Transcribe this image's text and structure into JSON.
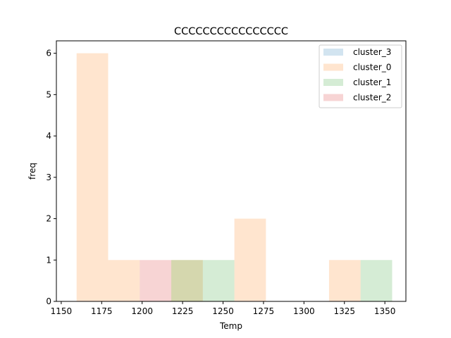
{
  "chart_data": {
    "type": "bar",
    "title": "CCCCCCCCCCCCCCCC",
    "xlabel": "Temp",
    "ylabel": "freq",
    "xlim": [
      1147,
      1363
    ],
    "ylim": [
      0,
      6.3
    ],
    "xticks": [
      1150,
      1175,
      1200,
      1225,
      1250,
      1275,
      1300,
      1325,
      1350
    ],
    "yticks": [
      0,
      1,
      2,
      3,
      4,
      5,
      6
    ],
    "legend_position": "top-right",
    "alpha": 0.2,
    "series": [
      {
        "name": "cluster_3",
        "color": "#1f77b4",
        "bins": []
      },
      {
        "name": "cluster_0",
        "color": "#ff7f0e",
        "bins": [
          {
            "x0": 1159.5,
            "x1": 1179.0,
            "count": 6
          },
          {
            "x0": 1179.0,
            "x1": 1198.5,
            "count": 1
          },
          {
            "x0": 1218.0,
            "x1": 1237.5,
            "count": 1
          },
          {
            "x0": 1257.0,
            "x1": 1276.5,
            "count": 2
          },
          {
            "x0": 1315.5,
            "x1": 1335.0,
            "count": 1
          }
        ]
      },
      {
        "name": "cluster_1",
        "color": "#2ca02c",
        "bins": [
          {
            "x0": 1218.0,
            "x1": 1237.5,
            "count": 1
          },
          {
            "x0": 1237.5,
            "x1": 1257.0,
            "count": 1
          },
          {
            "x0": 1335.0,
            "x1": 1354.5,
            "count": 1
          }
        ]
      },
      {
        "name": "cluster_2",
        "color": "#d62728",
        "bins": [
          {
            "x0": 1198.5,
            "x1": 1218.0,
            "count": 1
          }
        ]
      }
    ]
  }
}
